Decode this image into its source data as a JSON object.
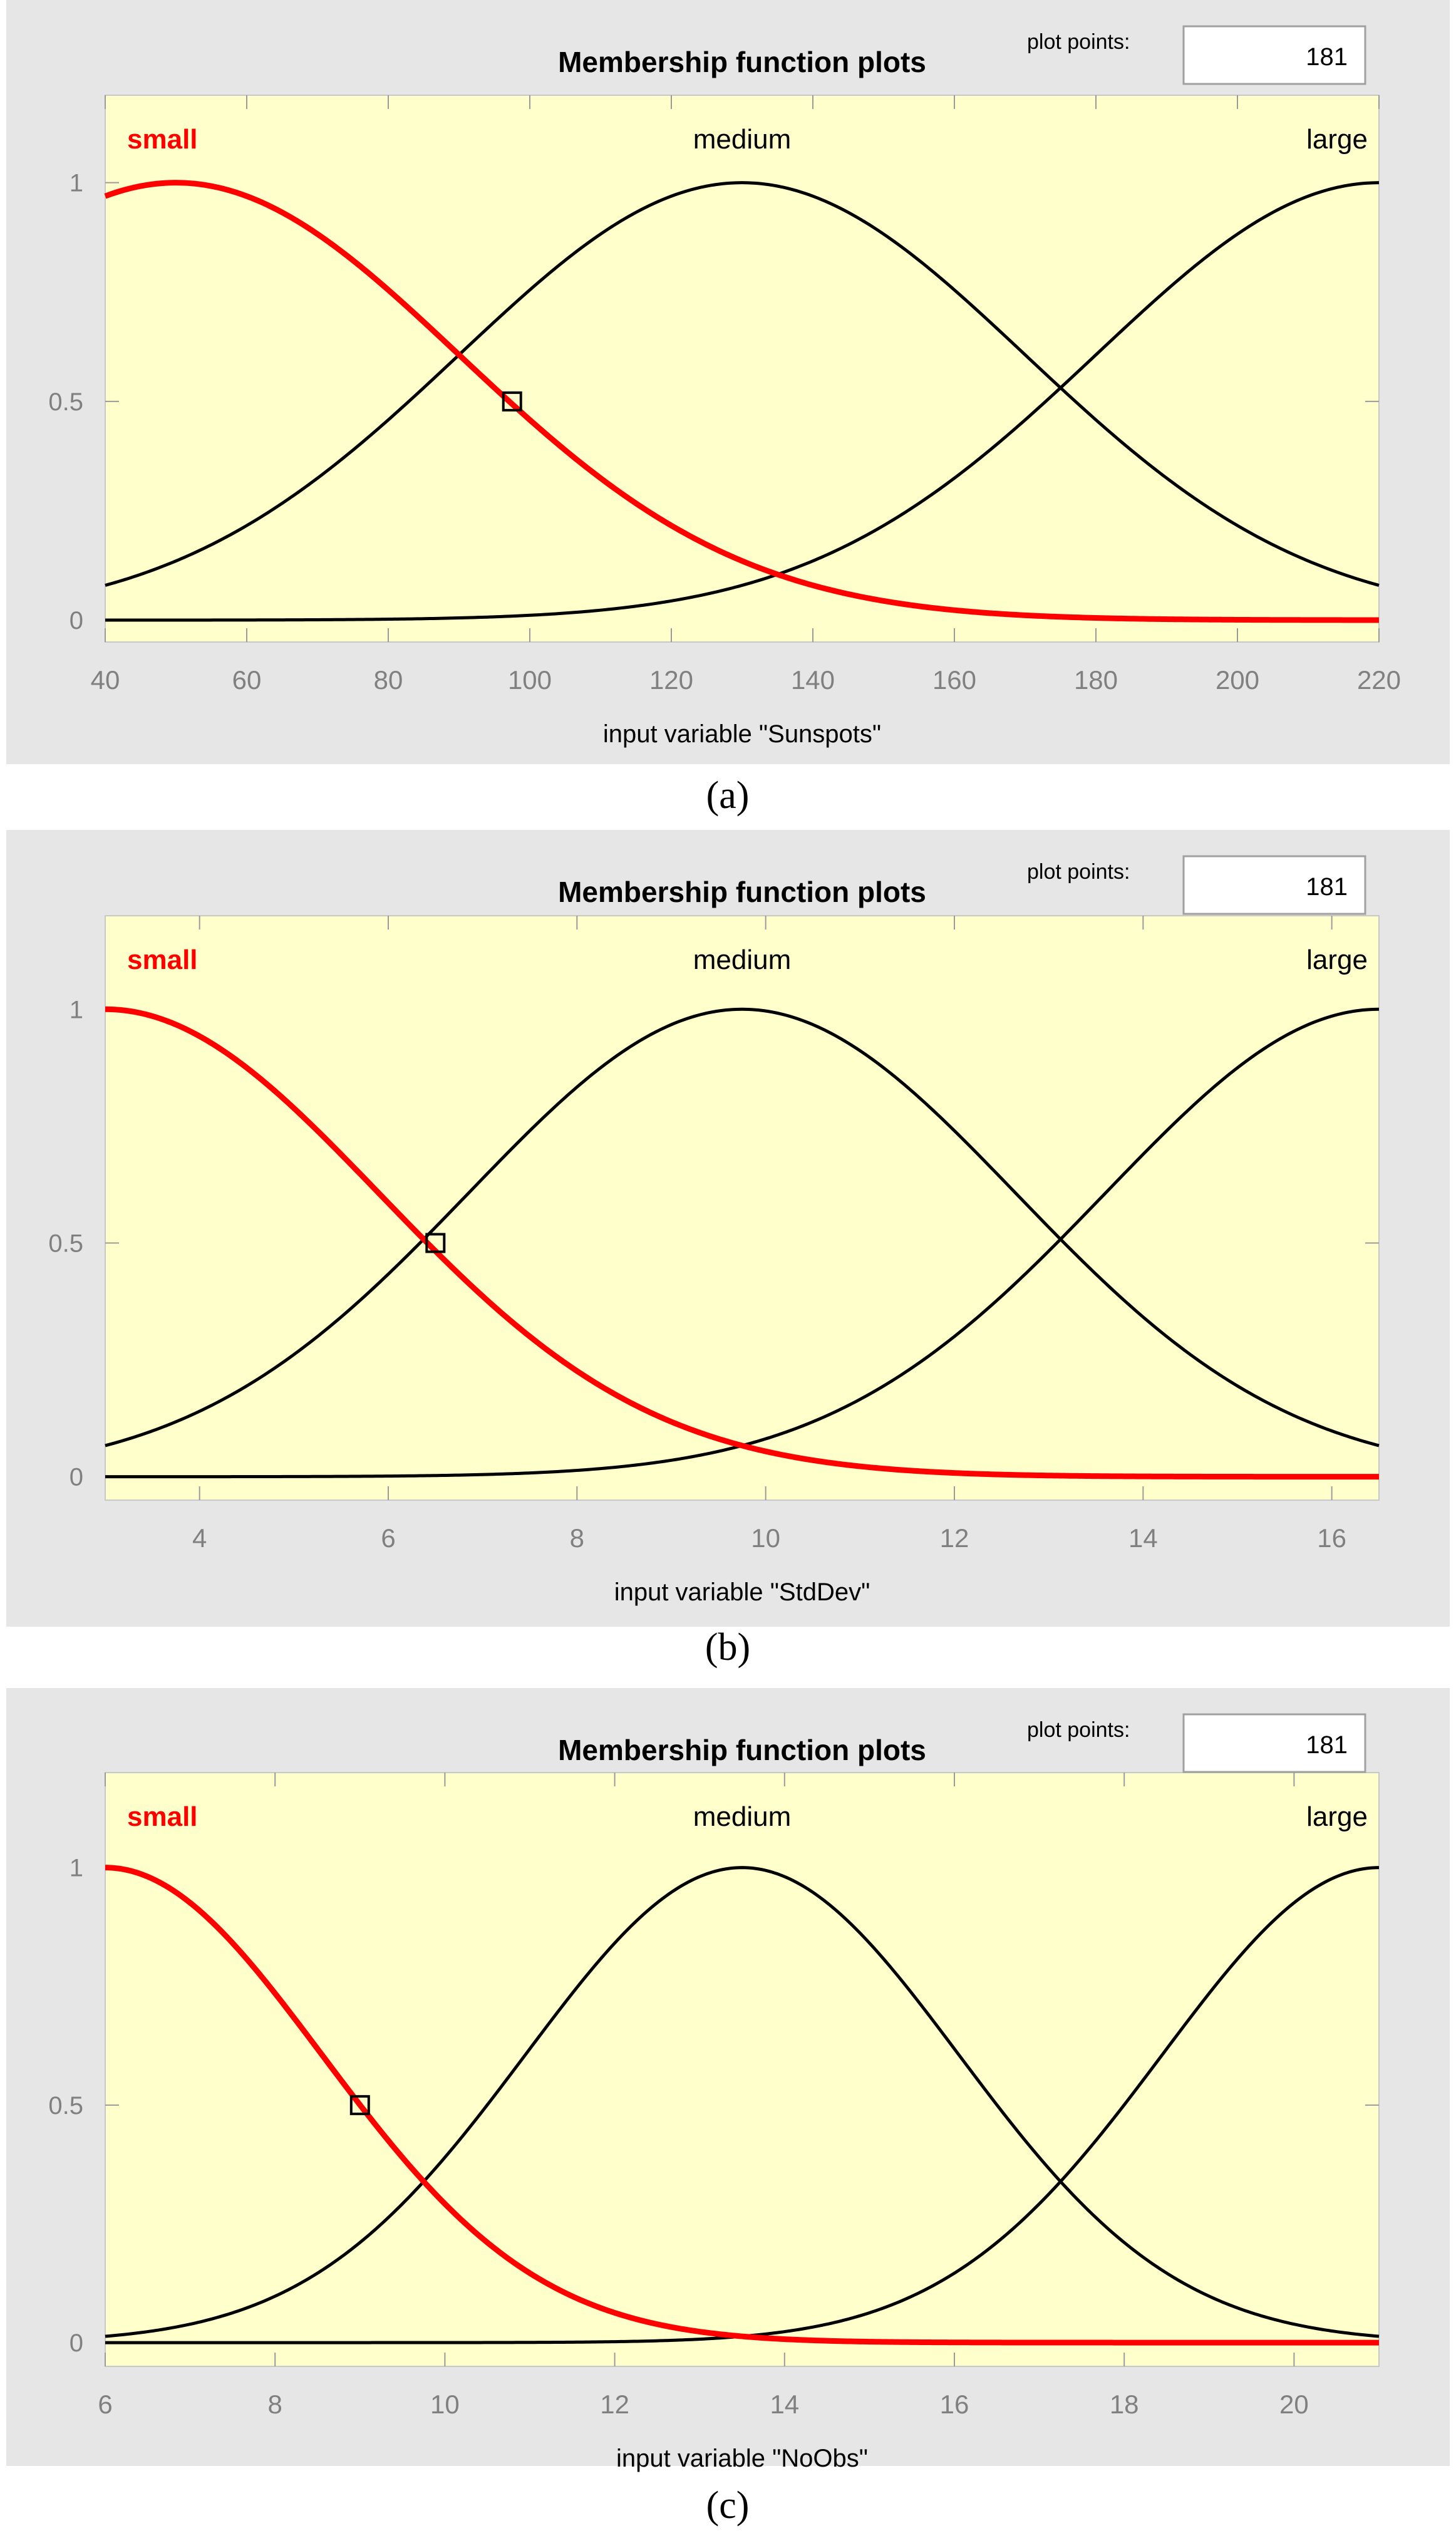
{
  "colors": {
    "panel_bg": "#e6e6e6",
    "plot_bg": "#ffffcc",
    "selected_curve": "#ff0000",
    "curve": "#000000",
    "tick_text": "#808080"
  },
  "plot_points_label": "plot points:",
  "chart_data": [
    {
      "type": "line",
      "caption": "(a)",
      "title": "Membership function plots",
      "plot_points": "181",
      "xlabel": "input variable \"Sunspots\"",
      "xlim": [
        40,
        220
      ],
      "ylim": [
        -0.05,
        1.2
      ],
      "xticks": [
        40,
        60,
        80,
        100,
        120,
        140,
        160,
        180,
        200,
        220
      ],
      "yticks": [
        0,
        0.5,
        1
      ],
      "ytick_labels": [
        "0",
        "0.5",
        "1"
      ],
      "grid": false,
      "marker": {
        "x": 97.5,
        "y": 0.5
      },
      "series": [
        {
          "name": "small",
          "type": "gaussmf",
          "center": 50,
          "sigma": 40,
          "selected": true
        },
        {
          "name": "medium",
          "type": "gaussmf",
          "center": 130,
          "sigma": 40,
          "selected": false
        },
        {
          "name": "large",
          "type": "gaussmf",
          "center": 220,
          "sigma": 40,
          "selected": false
        }
      ]
    },
    {
      "type": "line",
      "caption": "(b)",
      "title": "Membership function plots",
      "plot_points": "181",
      "xlabel": "input variable \"StdDev\"",
      "xlim": [
        3,
        16.5
      ],
      "ylim": [
        -0.05,
        1.2
      ],
      "xticks": [
        4,
        6,
        8,
        10,
        12,
        14,
        16
      ],
      "yticks": [
        0,
        0.5,
        1
      ],
      "ytick_labels": [
        "0",
        "0.5",
        "1"
      ],
      "grid": false,
      "marker": {
        "x": 6.5,
        "y": 0.5
      },
      "series": [
        {
          "name": "small",
          "type": "gaussmf",
          "center": 3,
          "sigma": 2.9,
          "selected": true
        },
        {
          "name": "medium",
          "type": "gaussmf",
          "center": 9.75,
          "sigma": 2.9,
          "selected": false
        },
        {
          "name": "large",
          "type": "gaussmf",
          "center": 16.5,
          "sigma": 2.9,
          "selected": false
        }
      ]
    },
    {
      "type": "line",
      "caption": "(c)",
      "title": "Membership function plots",
      "plot_points": "181",
      "xlabel": "input variable \"NoObs\"",
      "xlim": [
        6,
        21
      ],
      "ylim": [
        -0.05,
        1.2
      ],
      "xticks": [
        6,
        8,
        10,
        12,
        14,
        16,
        18,
        20
      ],
      "yticks": [
        0,
        0.5,
        1
      ],
      "ytick_labels": [
        "0",
        "0.5",
        "1"
      ],
      "grid": false,
      "marker": {
        "x": 9,
        "y": 0.5
      },
      "series": [
        {
          "name": "small",
          "type": "gaussmf",
          "center": 6,
          "sigma": 2.55,
          "selected": true
        },
        {
          "name": "medium",
          "type": "gaussmf",
          "center": 13.5,
          "sigma": 2.55,
          "selected": false
        },
        {
          "name": "large",
          "type": "gaussmf",
          "center": 21,
          "sigma": 2.55,
          "selected": false
        }
      ]
    }
  ]
}
